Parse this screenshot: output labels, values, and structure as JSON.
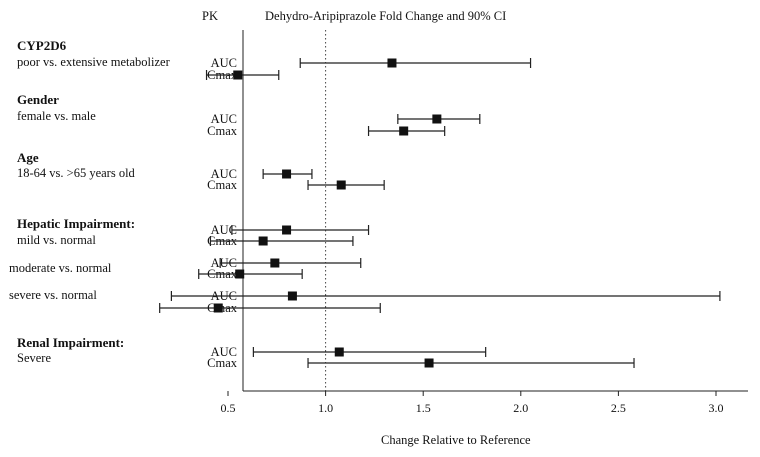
{
  "chart_data": {
    "type": "forest",
    "title": "Dehydro-Aripiprazole Fold Change and 90% CI",
    "column_header": "PK",
    "xlabel": "Change Relative to Reference",
    "xlim": [
      0.0,
      3.1
    ],
    "xticks": [
      "0.5",
      "1.0",
      "1.5",
      "2.0",
      "2.5",
      "3.0"
    ],
    "tick_values": [
      0.5,
      1.0,
      1.5,
      2.0,
      2.5,
      3.0
    ],
    "reference_line": 1.0,
    "groups": [
      {
        "title": "CYP2D6",
        "subgroups": [
          {
            "label": "poor vs. extensive metabolizer",
            "rows": [
              {
                "pk": "AUC",
                "estimate": 1.34,
                "lower": 0.87,
                "upper": 2.05
              },
              {
                "pk": "Cmax",
                "estimate": 0.55,
                "lower": 0.39,
                "upper": 0.76
              }
            ]
          }
        ]
      },
      {
        "title": "Gender",
        "subgroups": [
          {
            "label": "female vs. male",
            "rows": [
              {
                "pk": "AUC",
                "estimate": 1.57,
                "lower": 1.37,
                "upper": 1.79
              },
              {
                "pk": "Cmax",
                "estimate": 1.4,
                "lower": 1.22,
                "upper": 1.61
              }
            ]
          }
        ]
      },
      {
        "title": "Age",
        "subgroups": [
          {
            "label": "18-64 vs. >65 years old",
            "rows": [
              {
                "pk": "AUC",
                "estimate": 0.8,
                "lower": 0.68,
                "upper": 0.93
              },
              {
                "pk": "Cmax",
                "estimate": 1.08,
                "lower": 0.91,
                "upper": 1.3
              }
            ]
          }
        ]
      },
      {
        "title": "Hepatic Impairment:",
        "subgroups": [
          {
            "label": "mild vs. normal",
            "rows": [
              {
                "pk": "AUC",
                "estimate": 0.8,
                "lower": 0.52,
                "upper": 1.22
              },
              {
                "pk": "Cmax",
                "estimate": 0.68,
                "lower": 0.41,
                "upper": 1.14
              }
            ]
          },
          {
            "label": "moderate vs. normal",
            "rows": [
              {
                "pk": "AUC",
                "estimate": 0.74,
                "lower": 0.46,
                "upper": 1.18
              },
              {
                "pk": "Cmax",
                "estimate": 0.56,
                "lower": 0.35,
                "upper": 0.88
              }
            ]
          },
          {
            "label": "severe vs. normal",
            "rows": [
              {
                "pk": "AUC",
                "estimate": 0.83,
                "lower": 0.21,
                "upper": 3.02
              },
              {
                "pk": "Cmax",
                "estimate": 0.45,
                "lower": 0.15,
                "upper": 1.28
              }
            ]
          }
        ]
      },
      {
        "title": "Renal Impairment:",
        "subgroups": [
          {
            "label": "Severe",
            "rows": [
              {
                "pk": "AUC",
                "estimate": 1.07,
                "lower": 0.63,
                "upper": 1.82
              },
              {
                "pk": "Cmax",
                "estimate": 1.53,
                "lower": 0.91,
                "upper": 2.58
              }
            ]
          }
        ]
      }
    ]
  }
}
